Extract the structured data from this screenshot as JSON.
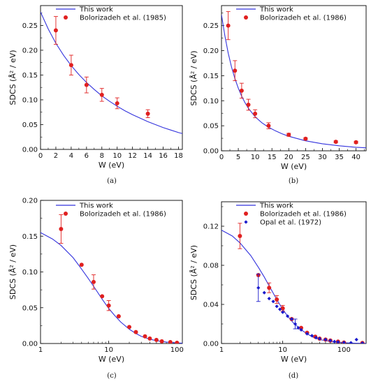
{
  "colors": {
    "model": "#3333dd",
    "bolor": "#e02020",
    "opal": "#1a1acc",
    "axis": "#000000"
  },
  "chart_data": [
    {
      "id": "a",
      "type": "scatter",
      "panel_label": "(a)",
      "xlabel": "W (eV)",
      "ylabel": "SDCS (Å² / eV)",
      "xscale": "linear",
      "xlim": [
        0,
        18.5
      ],
      "ylim": [
        0,
        0.29
      ],
      "xticks": [
        0,
        2,
        4,
        6,
        8,
        10,
        12,
        14,
        16,
        18
      ],
      "yticks": [
        0.0,
        0.05,
        0.1,
        0.15,
        0.2,
        0.25
      ],
      "xtick_labels": [
        "0",
        "2",
        "4",
        "6",
        "8",
        "10",
        "12",
        "14",
        "16",
        "18"
      ],
      "ytick_labels": [
        "0.00",
        "0.05",
        "0.10",
        "0.15",
        "0.20",
        "0.25"
      ],
      "legend": [
        {
          "label": "This work",
          "kind": "line",
          "color": "#3333dd"
        },
        {
          "label": "Bolorizadeh et al. (1985)",
          "kind": "circle",
          "color": "#e02020"
        }
      ],
      "series": [
        {
          "kind": "line",
          "color": "#3333dd",
          "x": [
            0,
            1,
            2,
            3,
            4,
            5,
            6,
            7,
            8,
            9,
            10,
            11,
            12,
            13,
            14,
            15,
            16,
            17,
            18,
            18.5
          ],
          "y": [
            0.277,
            0.243,
            0.214,
            0.19,
            0.169,
            0.151,
            0.135,
            0.121,
            0.108,
            0.097,
            0.087,
            0.078,
            0.07,
            0.063,
            0.056,
            0.05,
            0.044,
            0.039,
            0.034,
            0.032
          ]
        },
        {
          "kind": "circle",
          "color": "#e02020",
          "x": [
            2,
            4,
            6,
            8,
            10,
            14
          ],
          "y": [
            0.24,
            0.17,
            0.13,
            0.11,
            0.093,
            0.072
          ],
          "err": [
            0.028,
            0.02,
            0.016,
            0.013,
            0.011,
            0.008
          ]
        }
      ]
    },
    {
      "id": "b",
      "type": "scatter",
      "panel_label": "(b)",
      "xlabel": "W (eV)",
      "ylabel": "SDCS (Å² / eV)",
      "xscale": "linear",
      "xlim": [
        0,
        43
      ],
      "ylim": [
        0,
        0.29
      ],
      "xticks": [
        0,
        5,
        10,
        15,
        20,
        25,
        30,
        35,
        40
      ],
      "yticks": [
        0.0,
        0.05,
        0.1,
        0.15,
        0.2,
        0.25
      ],
      "xtick_labels": [
        "0",
        "5",
        "10",
        "15",
        "20",
        "25",
        "30",
        "35",
        "40"
      ],
      "ytick_labels": [
        "0.00",
        "0.05",
        "0.10",
        "0.15",
        "0.20",
        "0.25"
      ],
      "legend": [
        {
          "label": "This work",
          "kind": "line",
          "color": "#3333dd"
        },
        {
          "label": "Bolorizadeh et al. (1986)",
          "kind": "circle",
          "color": "#e02020"
        }
      ],
      "series": [
        {
          "kind": "line",
          "color": "#3333dd",
          "x": [
            0,
            1,
            2,
            3,
            4,
            5,
            6,
            7,
            8,
            10,
            12,
            14,
            16,
            18,
            20,
            25,
            30,
            35,
            40,
            43
          ],
          "y": [
            0.272,
            0.23,
            0.195,
            0.167,
            0.144,
            0.125,
            0.109,
            0.096,
            0.085,
            0.068,
            0.056,
            0.047,
            0.04,
            0.034,
            0.029,
            0.02,
            0.014,
            0.01,
            0.007,
            0.006
          ]
        },
        {
          "kind": "circle",
          "color": "#e02020",
          "x": [
            2,
            4,
            6,
            8,
            10,
            14,
            20,
            25,
            34,
            40
          ],
          "y": [
            0.25,
            0.16,
            0.12,
            0.092,
            0.074,
            0.05,
            0.032,
            0.024,
            0.018,
            0.017
          ],
          "err": [
            0.028,
            0.02,
            0.015,
            0.011,
            0.008,
            0.006,
            0.003,
            0.002,
            0.002,
            0.002
          ]
        }
      ]
    },
    {
      "id": "c",
      "type": "scatter",
      "panel_label": "(c)",
      "xlabel": "W (eV)",
      "ylabel": "SDCS (Å² / eV)",
      "xscale": "log",
      "xlim": [
        1,
        120
      ],
      "ylim": [
        0,
        0.2
      ],
      "xticks": [
        1,
        10,
        100
      ],
      "yticks": [
        0.0,
        0.05,
        0.1,
        0.15,
        0.2
      ],
      "xtick_labels": [
        "1",
        "10",
        "100"
      ],
      "ytick_labels": [
        "0.00",
        "0.05",
        "0.10",
        "0.15",
        "0.20"
      ],
      "legend": [
        {
          "label": "This work",
          "kind": "line",
          "color": "#3333dd"
        },
        {
          "label": "Bolorizadeh et al. (1986)",
          "kind": "circle",
          "color": "#e02020"
        }
      ],
      "series": [
        {
          "kind": "line",
          "color": "#3333dd",
          "x": [
            1,
            1.5,
            2,
            3,
            4,
            5,
            6,
            8,
            10,
            12,
            15,
            20,
            25,
            30,
            40,
            50,
            70,
            100,
            120
          ],
          "y": [
            0.155,
            0.146,
            0.137,
            0.12,
            0.104,
            0.091,
            0.08,
            0.062,
            0.049,
            0.04,
            0.03,
            0.02,
            0.014,
            0.01,
            0.006,
            0.004,
            0.002,
            0.0008,
            0.0005
          ]
        },
        {
          "kind": "circle",
          "color": "#e02020",
          "x": [
            2,
            4,
            6,
            8,
            10,
            14,
            20,
            25,
            34,
            40,
            50,
            60,
            80,
            100
          ],
          "y": [
            0.16,
            0.11,
            0.086,
            0.066,
            0.053,
            0.038,
            0.023,
            0.016,
            0.01,
            0.007,
            0.005,
            0.003,
            0.002,
            0.001
          ],
          "err": [
            0.02,
            0,
            0.01,
            0,
            0.007,
            0,
            0,
            0,
            0,
            0,
            0,
            0,
            0,
            0
          ]
        }
      ]
    },
    {
      "id": "d",
      "type": "scatter",
      "panel_label": "(d)",
      "xlabel": "W (eV)",
      "ylabel": "SDCS (Å² / eV)",
      "xscale": "log",
      "xlim": [
        1,
        230
      ],
      "ylim": [
        0,
        0.145
      ],
      "xticks": [
        1,
        10,
        100
      ],
      "yticks": [
        0.0,
        0.04,
        0.08,
        0.12
      ],
      "xtick_labels": [
        "1",
        "10",
        "100"
      ],
      "ytick_labels": [
        "0.00",
        "0.04",
        "0.08",
        "0.12"
      ],
      "legend": [
        {
          "label": "This work",
          "kind": "line",
          "color": "#3333dd"
        },
        {
          "label": "Bolorizadeh et al. (1986)",
          "kind": "circle",
          "color": "#e02020"
        },
        {
          "label": "Opal et al. (1972)",
          "kind": "diamond",
          "color": "#1a1acc"
        }
      ],
      "series": [
        {
          "kind": "line",
          "color": "#3333dd",
          "x": [
            1,
            1.5,
            2,
            3,
            4,
            5,
            6,
            8,
            10,
            12,
            15,
            20,
            25,
            30,
            40,
            50,
            70,
            100,
            150,
            230
          ],
          "y": [
            0.116,
            0.11,
            0.103,
            0.09,
            0.078,
            0.068,
            0.059,
            0.045,
            0.035,
            0.028,
            0.021,
            0.014,
            0.01,
            0.007,
            0.004,
            0.003,
            0.0015,
            0.0008,
            0.0003,
            0.0001
          ]
        },
        {
          "kind": "circle",
          "color": "#e02020",
          "x": [
            2,
            4,
            6,
            8,
            10,
            14,
            20,
            25,
            34,
            40,
            50,
            60,
            80,
            100,
            200
          ],
          "y": [
            0.11,
            0.07,
            0.057,
            0.045,
            0.036,
            0.025,
            0.016,
            0.011,
            0.007,
            0.005,
            0.004,
            0.003,
            0.002,
            0.001,
            0.0005
          ],
          "err": [
            0.013,
            0,
            0.005,
            0.004,
            0.003,
            0,
            0,
            0,
            0,
            0,
            0,
            0,
            0,
            0,
            0
          ]
        },
        {
          "kind": "diamond",
          "color": "#1a1acc",
          "x": [
            4,
            5,
            6,
            7,
            8,
            9,
            10,
            12,
            14,
            16,
            18,
            20,
            25,
            30,
            35,
            40,
            50,
            60,
            70,
            80,
            100,
            130,
            160,
            200
          ],
          "y": [
            0.057,
            0.052,
            0.046,
            0.043,
            0.038,
            0.035,
            0.032,
            0.028,
            0.025,
            0.02,
            0.016,
            0.014,
            0.01,
            0.008,
            0.006,
            0.005,
            0.004,
            0.003,
            0.002,
            0.0015,
            0.001,
            0.0007,
            0.004,
            0.0004
          ],
          "err": [
            0.014,
            0,
            0,
            0,
            0,
            0,
            0,
            0,
            0,
            0.005,
            0,
            0,
            0,
            0,
            0,
            0,
            0,
            0,
            0,
            0,
            0,
            0,
            0,
            0
          ]
        }
      ]
    }
  ]
}
